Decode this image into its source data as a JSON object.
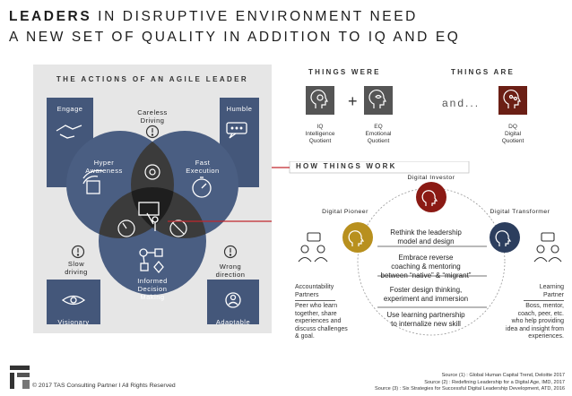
{
  "title": {
    "line1_bold": "LEADERS",
    "line1_rest": " IN DISRUPTIVE ENVIRONMENT NEED",
    "line2": "A NEW SET OF QUALITY IN ADDITION TO IQ AND EQ"
  },
  "agile": {
    "title": "THE ACTIONS OF AN AGILE LEADER",
    "corners": {
      "engage": "Engage",
      "humble": "Humble",
      "visionary": "Visionary",
      "adaptable": "Adaptable"
    },
    "circles": {
      "hyper": [
        "Hyper",
        "Awareness"
      ],
      "fast": [
        "Fast",
        "Execution"
      ],
      "informed": [
        "Informed",
        "Decision",
        "Making"
      ]
    },
    "outside": {
      "careless": [
        "Careless",
        "Driving"
      ],
      "slow": [
        "Slow",
        "driving"
      ],
      "wrong": [
        "Wrong",
        "direction"
      ]
    },
    "colors": {
      "circle": "#4a5e82",
      "overlap": "#3a3a3a",
      "center": "#1e1e1e",
      "accent": "#c0272d"
    }
  },
  "things_were": {
    "title": "THINGS WERE",
    "iq": [
      "IQ",
      "Intelligence",
      "Quotient"
    ],
    "plus": "+",
    "eq": [
      "EQ",
      "Emotional",
      "Quotient"
    ]
  },
  "things_are": {
    "title": "THINGS ARE",
    "and": "and...",
    "dq": [
      "DQ",
      "Digital",
      "Quotient"
    ]
  },
  "how": {
    "title": "HOW THINGS WORK",
    "investor": "Digital Investor",
    "pioneer": "Digital Pioneer",
    "transformer": "Digital Transformer",
    "steps": [
      [
        "Rethink the leadership",
        "model and design"
      ],
      [
        "Embrace reverse",
        "coaching & mentoring",
        "between “native” & “migrant”"
      ],
      [
        "Foster design thinking,",
        "experiment and immersion"
      ],
      [
        "Use learning partnership",
        "to internalize new skill"
      ]
    ],
    "left_title": [
      "Accountability",
      "Partners"
    ],
    "left_desc": [
      "Peer who learn",
      "together, share",
      "experiences and",
      "discuss challenges",
      "& goal."
    ],
    "right_title": [
      "Learning",
      "Partner"
    ],
    "right_desc": [
      "Boss, mentor,",
      "coach, peer, etc.",
      "who help providing",
      "idea and insight from",
      "experiences."
    ],
    "colors": {
      "investor": "#8b1a14",
      "pioneer": "#b8901e",
      "transformer": "#2c3e5e"
    }
  },
  "footer": {
    "copyright": "© 2017 TAS Consulting Partner  I  All Rights Reserved",
    "sources": [
      "Source (1) : Global Human Capital Trend, Deloitte 2017",
      "Source (2) : Redefining Leadership for a Digital Age, IMD, 2017",
      "Source (3) : Six Strategies for Successful Digital Leadership Development, ATD, 2016"
    ]
  }
}
